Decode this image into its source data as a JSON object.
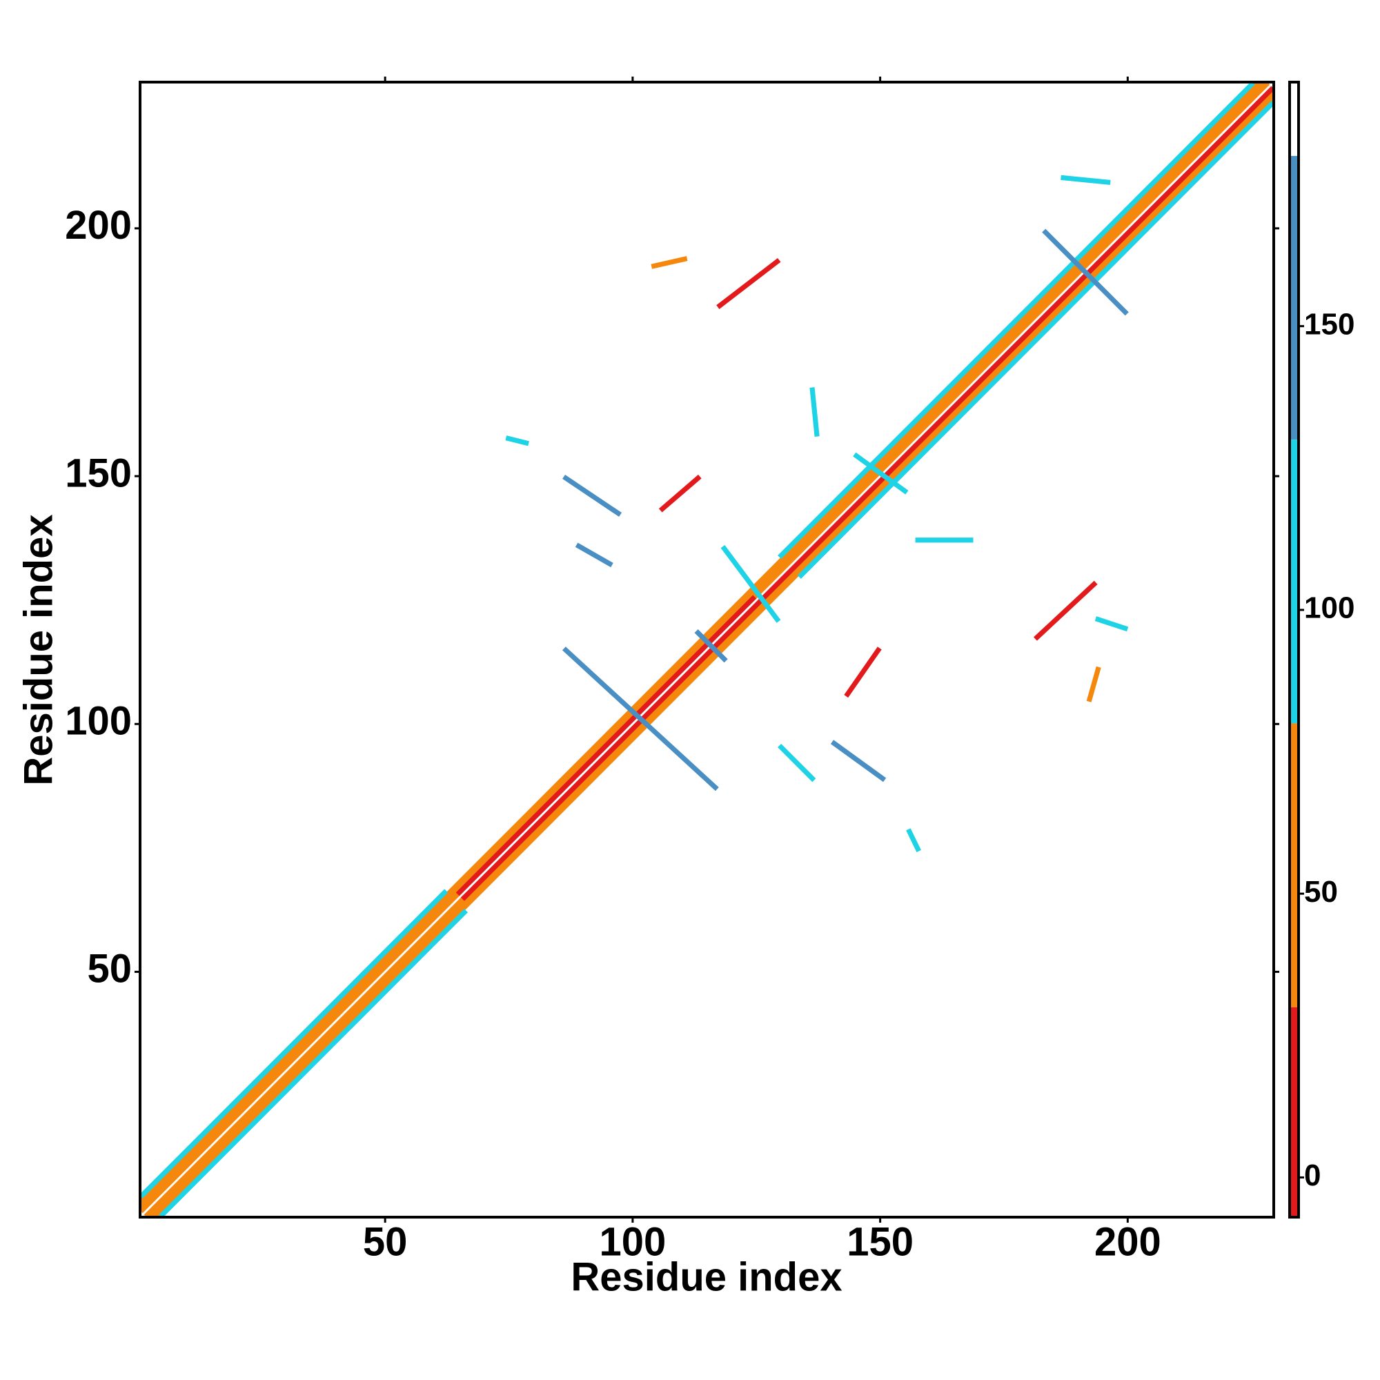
{
  "chart_data": {
    "type": "contact-map",
    "x_label": "Residue index",
    "y_label": "Residue index",
    "xlim": [
      0.5,
      229.5
    ],
    "ylim": [
      0.5,
      229.5
    ],
    "xticks": [
      50,
      100,
      150,
      200
    ],
    "yticks": [
      50,
      100,
      150,
      200
    ],
    "colorbar": {
      "lim": [
        -7,
        193
      ],
      "ticks": [
        0,
        50,
        100,
        150
      ],
      "bins": [
        -7,
        30,
        80,
        130,
        180,
        193
      ],
      "colors": [
        "#e31a1c",
        "#f5880c",
        "#1fd3e6",
        "#4a8fc4",
        "#ffffff"
      ]
    },
    "contacts": [
      {
        "i": [
          1,
          226
        ],
        "j": [
          4,
          229
        ],
        "value": 55
      },
      {
        "i": [
          4,
          229
        ],
        "j": [
          1,
          226
        ],
        "value": 55
      },
      {
        "i": [
          1,
          227
        ],
        "j": [
          3,
          229
        ],
        "value": 55
      },
      {
        "i": [
          3,
          229
        ],
        "j": [
          1,
          227
        ],
        "value": 55
      },
      {
        "i": [
          1,
          65
        ],
        "j": [
          2,
          66
        ],
        "value": 55
      },
      {
        "i": [
          2,
          66
        ],
        "j": [
          1,
          65
        ],
        "value": 55
      },
      {
        "i": [
          65,
          125
        ],
        "j": [
          66,
          126
        ],
        "value": 10
      },
      {
        "i": [
          66,
          126
        ],
        "j": [
          65,
          125
        ],
        "value": 10
      },
      {
        "i": [
          125,
          228
        ],
        "j": [
          126,
          229
        ],
        "value": 55
      },
      {
        "i": [
          126,
          229
        ],
        "j": [
          125,
          228
        ],
        "value": 10
      },
      {
        "i": [
          1,
          62
        ],
        "j": [
          5,
          66
        ],
        "value": 105
      },
      {
        "i": [
          5,
          66
        ],
        "j": [
          1,
          62
        ],
        "value": 105
      },
      {
        "i": [
          130,
          225
        ],
        "j": [
          134,
          229
        ],
        "value": 105
      },
      {
        "i": [
          134,
          229
        ],
        "j": [
          130,
          225
        ],
        "value": 105
      },
      {
        "i": [
          86.5,
          116.7
        ],
        "j": [
          114.9,
          87.2
        ],
        "value": 155
      },
      {
        "i": [
          183.4,
          199.5
        ],
        "j": [
          199.2,
          183.1
        ],
        "value": 155
      },
      {
        "i": [
          86.5,
          97.1
        ],
        "j": [
          149.6,
          142.5
        ],
        "value": 155
      },
      {
        "i": [
          140.7,
          150.5
        ],
        "j": [
          96.1,
          89
        ],
        "value": 155
      },
      {
        "i": [
          117.6,
          129.2
        ],
        "j": [
          184.4,
          193.3
        ],
        "value": 10
      },
      {
        "i": [
          181.7,
          193.2
        ],
        "j": [
          117.5,
          128.2
        ],
        "value": 10
      },
      {
        "i": [
          106,
          113.2
        ],
        "j": [
          143.4,
          149.6
        ],
        "value": 10
      },
      {
        "i": [
          143.4,
          149.6
        ],
        "j": [
          106,
          114.9
        ],
        "value": 10
      },
      {
        "i": [
          192.3,
          194
        ],
        "j": [
          105,
          111
        ],
        "value": 55
      },
      {
        "i": [
          104.3,
          110.5
        ],
        "j": [
          192.4,
          193.8
        ],
        "value": 55
      },
      {
        "i": [
          155.9,
          157.6
        ],
        "j": [
          78.3,
          74.8
        ],
        "value": 105
      },
      {
        "i": [
          74.9,
          78.5
        ],
        "j": [
          157.6,
          156.7
        ],
        "value": 105
      },
      {
        "i": [
          118.5,
          129.2
        ],
        "j": [
          135.4,
          121.1
        ],
        "value": 105
      },
      {
        "i": [
          145.2,
          155
        ],
        "j": [
          154.1,
          147
        ],
        "value": 105
      },
      {
        "i": [
          136.3,
          137.2
        ],
        "j": [
          167.4,
          158.5
        ],
        "value": 105
      },
      {
        "i": [
          157.6,
          168.3
        ],
        "j": [
          137.1,
          137.1
        ],
        "value": 105
      },
      {
        "i": [
          194,
          199.5
        ],
        "j": [
          121.1,
          119.3
        ],
        "value": 105
      },
      {
        "i": [
          130,
          136.3
        ],
        "j": [
          95.3,
          89
        ],
        "value": 105
      },
      {
        "i": [
          89.1,
          95.4
        ],
        "j": [
          135.9,
          132.3
        ],
        "value": 155
      },
      {
        "i": [
          113.2,
          118.5
        ],
        "j": [
          118.4,
          113.1
        ],
        "value": 155
      },
      {
        "i": [
          187,
          196
        ],
        "j": [
          210.2,
          209.3
        ],
        "value": 105
      }
    ]
  }
}
